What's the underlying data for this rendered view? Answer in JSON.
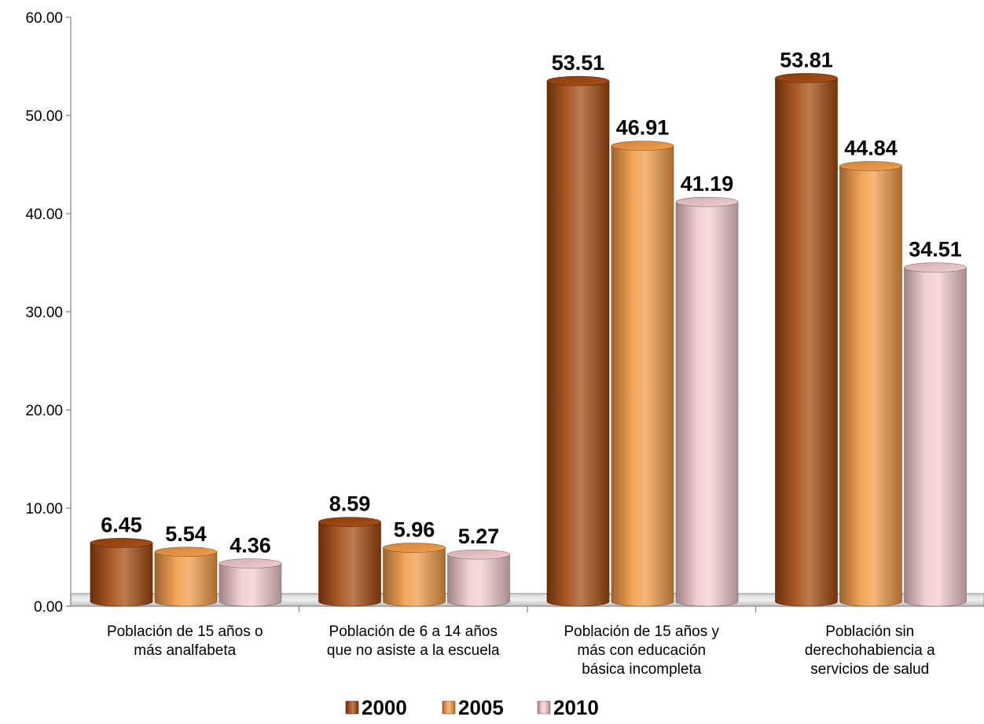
{
  "chart_data": {
    "type": "bar",
    "categories": [
      [
        "Población de 15 años o",
        "más analfabeta"
      ],
      [
        "Población de 6 a 14 años",
        "que no asiste a la escuela"
      ],
      [
        "Población de 15 años y",
        "más con educación",
        "básica incompleta"
      ],
      [
        "Población sin",
        "derechohabiencia a",
        "servicios de salud"
      ]
    ],
    "series": [
      {
        "name": "2000",
        "values": [
          6.45,
          8.59,
          53.51,
          53.81
        ],
        "value_labels": [
          "6.45",
          "8.59",
          "53.51",
          "53.81"
        ],
        "color": "#a4470d"
      },
      {
        "name": "2005",
        "values": [
          5.54,
          5.96,
          46.91,
          44.84
        ],
        "value_labels": [
          "5.54",
          "5.96",
          "46.91",
          "44.84"
        ],
        "color": "#f39a45"
      },
      {
        "name": "2010",
        "values": [
          4.36,
          5.27,
          41.19,
          34.51
        ],
        "value_labels": [
          "4.36",
          "5.27",
          "41.19",
          "34.51"
        ],
        "color": "#f3cbcd"
      }
    ],
    "ylim": [
      0,
      60
    ],
    "yticks": [
      "0.00",
      "10.00",
      "20.00",
      "30.00",
      "40.00",
      "50.00",
      "60.00"
    ],
    "ytick_values": [
      0,
      10,
      20,
      30,
      40,
      50,
      60
    ],
    "grid": false,
    "legend_position": "bottom-center",
    "style": "3d-cylinder"
  }
}
